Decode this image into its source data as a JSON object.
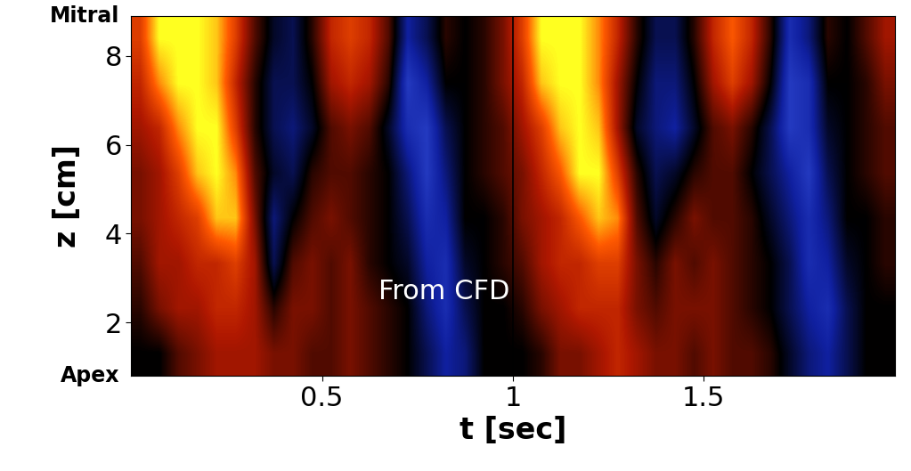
{
  "chart_data": {
    "type": "heatmap",
    "xlabel": "t [sec]",
    "ylabel": "z [cm]",
    "xlim": [
      0,
      2
    ],
    "ylim": [
      0.8,
      8.9
    ],
    "xticks": [
      0.5,
      1,
      1.5
    ],
    "yticks": [
      2,
      4,
      6,
      8
    ],
    "y_end_labels": {
      "top": "Mitral",
      "bottom": "Apex"
    },
    "annotations": [
      {
        "text": "From CFD",
        "x": 0.82,
        "y": 2.7
      }
    ],
    "cycle_boundary": 1,
    "value_range": [
      -1,
      1
    ],
    "cells": [
      [
        0,
        0,
        0.2,
        0.3,
        0.4,
        0.4,
        0.4,
        0.3,
        0.3,
        0.2,
        0.2,
        0.3,
        0.2,
        0.1,
        0,
        -0.2,
        -0.4,
        -0.3,
        0,
        0,
        0,
        0.1,
        0.3,
        0.3,
        0.4,
        0.5,
        0.4,
        0.3,
        0.3,
        0.2,
        0.3,
        0.2,
        0.2,
        0.1,
        -0.1,
        -0.3,
        -0.4,
        -0.2,
        0,
        0
      ],
      [
        0.1,
        0.3,
        0.4,
        0.4,
        0.5,
        0.5,
        0.4,
        0.1,
        0.3,
        0.3,
        0.2,
        0.3,
        0.2,
        0.1,
        0,
        -0.3,
        -0.5,
        -0.2,
        0,
        0,
        0.1,
        0.3,
        0.4,
        0.5,
        0.5,
        0.5,
        0.3,
        0.2,
        0.3,
        0.3,
        0.3,
        0.2,
        0.1,
        0,
        -0.2,
        -0.4,
        -0.5,
        -0.2,
        0,
        0
      ],
      [
        0.2,
        0.4,
        0.4,
        0.5,
        0.5,
        0.6,
        0.4,
        -0.2,
        0.2,
        0.3,
        0.2,
        0.3,
        0.1,
        0,
        -0.1,
        -0.4,
        -0.5,
        -0.1,
        0,
        0.1,
        0.2,
        0.4,
        0.5,
        0.5,
        0.6,
        0.6,
        0.3,
        0.1,
        0.3,
        0.2,
        0.3,
        0.2,
        0.1,
        0,
        -0.2,
        -0.5,
        -0.4,
        -0.1,
        0,
        0.1
      ],
      [
        0.3,
        0.4,
        0.5,
        0.6,
        0.9,
        0.9,
        0.3,
        -0.3,
        0,
        0.2,
        0.3,
        0.2,
        0.1,
        0,
        -0.2,
        -0.5,
        -0.4,
        0,
        0,
        0.1,
        0.3,
        0.4,
        0.5,
        0.7,
        0.9,
        0.8,
        0.2,
        -0.1,
        0.1,
        0.3,
        0.2,
        0.2,
        0.1,
        -0.1,
        -0.3,
        -0.5,
        -0.3,
        0,
        0,
        0.1
      ],
      [
        0.3,
        0.4,
        0.6,
        0.9,
        1,
        0.8,
        0.2,
        -0.1,
        -0.2,
        0.1,
        0.2,
        0.2,
        0.1,
        0,
        -0.3,
        -0.6,
        -0.3,
        0,
        0.1,
        0.2,
        0.3,
        0.5,
        0.7,
        1,
        1,
        0.6,
        0.1,
        -0.2,
        -0.1,
        0.1,
        0.2,
        0.2,
        0,
        -0.2,
        -0.4,
        -0.6,
        -0.2,
        0,
        0.1,
        0.2
      ],
      [
        0.4,
        0.5,
        0.8,
        1,
        1,
        0.6,
        0.1,
        -0.2,
        -0.3,
        -0.1,
        0.2,
        0.3,
        0.2,
        -0.1,
        -0.5,
        -0.6,
        -0.2,
        0,
        0.1,
        0.2,
        0.4,
        0.6,
        0.9,
        1,
        0.9,
        0.4,
        -0.1,
        -0.3,
        -0.4,
        -0.1,
        0.2,
        0.3,
        0.1,
        -0.2,
        -0.6,
        -0.5,
        -0.1,
        0,
        0.1,
        0.2
      ],
      [
        0.5,
        0.8,
        1,
        1,
        0.9,
        0.5,
        0.1,
        -0.2,
        -0.2,
        0,
        0.4,
        0.5,
        0.4,
        0.1,
        -0.6,
        -0.4,
        0,
        0,
        0.1,
        0.3,
        0.5,
        0.9,
        1,
        1,
        0.8,
        0.4,
        0,
        -0.3,
        -0.3,
        0,
        0.4,
        0.6,
        0.4,
        0,
        -0.6,
        -0.5,
        0,
        0,
        0.1,
        0.3
      ],
      [
        0.6,
        1,
        1,
        1,
        0.9,
        0.6,
        0.2,
        -0.1,
        -0.2,
        0.1,
        0.5,
        0.6,
        0.5,
        0.2,
        -0.4,
        -0.2,
        0.1,
        0,
        0.1,
        0.3,
        0.6,
        1,
        1,
        1,
        0.8,
        0.5,
        0.1,
        -0.2,
        -0.2,
        0.1,
        0.5,
        0.7,
        0.5,
        0.1,
        -0.5,
        -0.3,
        0.1,
        0,
        0.2,
        0.4
      ]
    ]
  }
}
